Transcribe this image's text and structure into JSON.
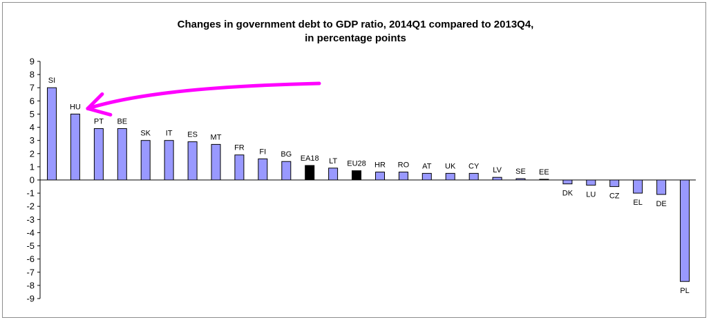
{
  "chart_data": {
    "type": "bar",
    "title_line1": "Changes in government debt to GDP ratio, 2014Q1 compared to 2013Q4,",
    "title_line2": "in percentage points",
    "xlabel": "",
    "ylabel": "",
    "ylim": [
      -9,
      9
    ],
    "yticks": [
      "9",
      "8",
      "7",
      "6",
      "5",
      "4",
      "3",
      "2",
      "1",
      "0",
      "-1",
      "-2",
      "-3",
      "-4",
      "-5",
      "-6",
      "-7",
      "-8",
      "-9"
    ],
    "grid": false,
    "legend": "none",
    "categories": [
      "SI",
      "HU",
      "PT",
      "BE",
      "SK",
      "IT",
      "ES",
      "MT",
      "FR",
      "FI",
      "BG",
      "EA18",
      "LT",
      "EU28",
      "HR",
      "RO",
      "AT",
      "UK",
      "CY",
      "LV",
      "SE",
      "EE",
      "DK",
      "LU",
      "CZ",
      "EL",
      "DE",
      "PL"
    ],
    "values": [
      7.0,
      5.0,
      3.9,
      3.9,
      3.0,
      3.0,
      2.9,
      2.7,
      1.9,
      1.6,
      1.4,
      1.1,
      0.9,
      0.7,
      0.6,
      0.6,
      0.5,
      0.5,
      0.5,
      0.2,
      0.1,
      0.05,
      -0.3,
      -0.4,
      -0.5,
      -1.0,
      -1.1,
      -7.7
    ],
    "aggregate_categories": [
      "EA18",
      "EU28"
    ],
    "colors": {
      "bar": "#9999ff",
      "aggregate_bar": "#000000",
      "bar_outline": "#000000",
      "annotation_arrow": "#ff00ff"
    },
    "annotation": {
      "shape": "arrow",
      "points_to": "HU"
    }
  }
}
